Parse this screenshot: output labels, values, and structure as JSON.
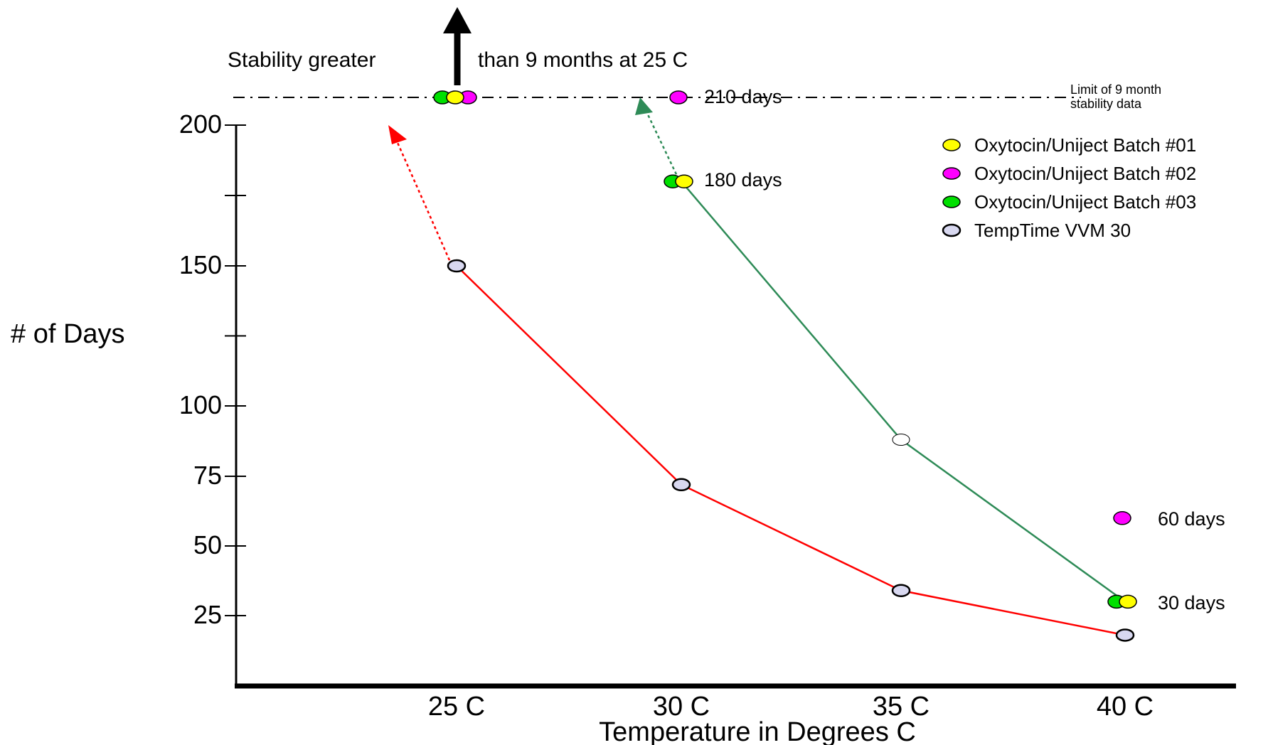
{
  "chart_data": {
    "type": "line",
    "xlabel": "Temperature in Degrees C",
    "ylabel": "# of Days",
    "categories": [
      "25 C",
      "30 C",
      "35 C",
      "40 C"
    ],
    "y_ticks": [
      25,
      50,
      75,
      100,
      150,
      200
    ],
    "ylim": [
      0,
      210
    ],
    "grid": false,
    "legend_position": "top-right",
    "limit_line": {
      "value": 210,
      "label_lines": [
        "Limit of 9 month",
        "stability data"
      ]
    },
    "headline": {
      "left": "Stability greater",
      "right": "than 9 months at 25 C"
    },
    "series": [
      {
        "name": "Oxytocin/Uniject Batch #01",
        "color": "#ffff00",
        "values": [
          210,
          180,
          null,
          30
        ]
      },
      {
        "name": "Oxytocin/Uniject Batch #02",
        "color": "#ff00ff",
        "values": [
          210,
          210,
          null,
          60
        ]
      },
      {
        "name": "Oxytocin/Uniject Batch #03",
        "color": "#00e000",
        "values": [
          210,
          180,
          null,
          30
        ]
      },
      {
        "name": "TempTime VVM 30",
        "color": "#d8d8f0",
        "values": [
          150,
          72,
          34,
          18
        ]
      }
    ],
    "trend_lines": [
      {
        "color": "#ff0000",
        "values": [
          150,
          72,
          34,
          18
        ]
      },
      {
        "color": "#2e8b57",
        "values": [
          null,
          180,
          88,
          30
        ]
      }
    ],
    "annotations": [
      "210 days",
      "180 days",
      "60 days",
      "30 days"
    ]
  }
}
